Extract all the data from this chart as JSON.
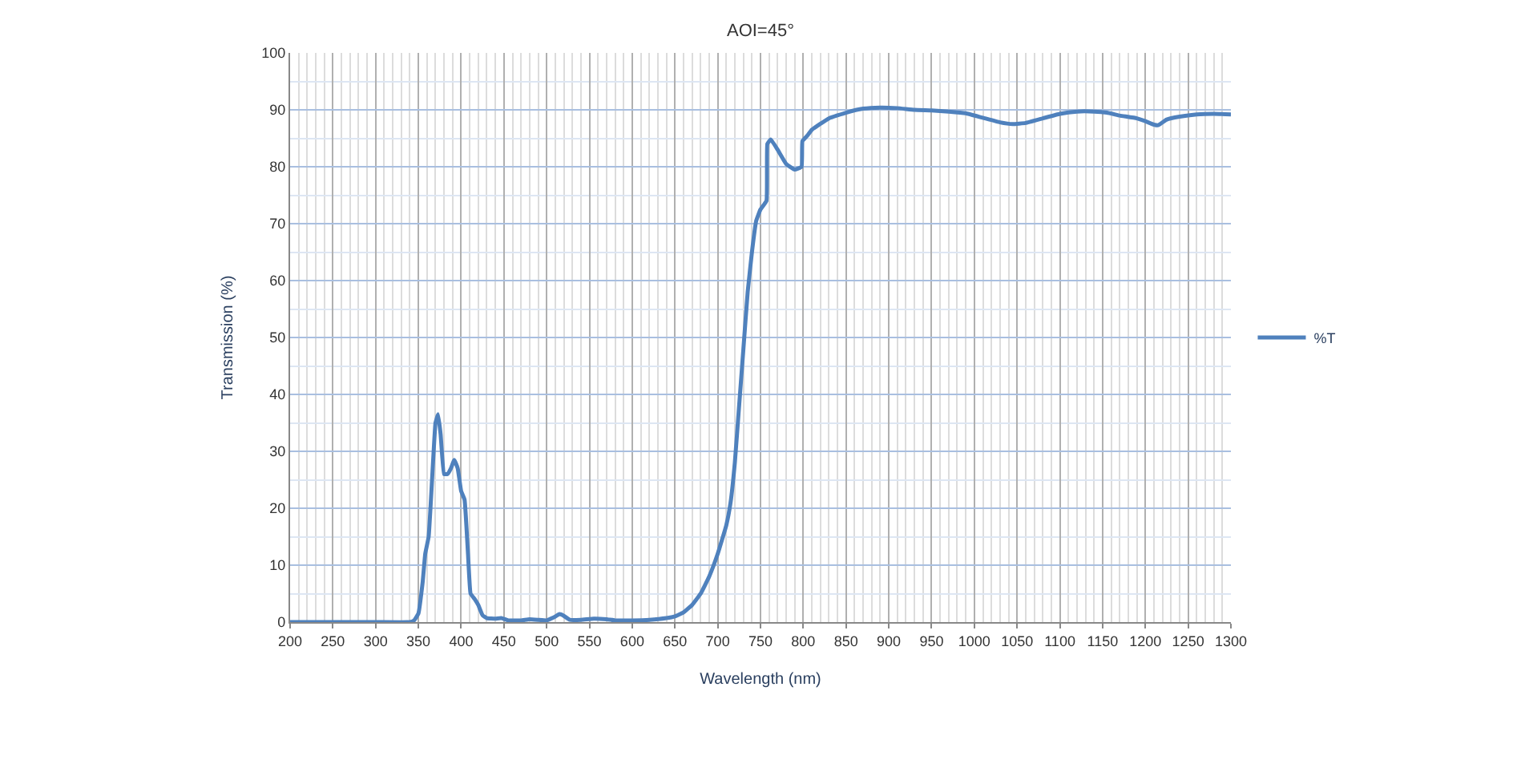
{
  "chart_data": {
    "type": "line",
    "title": "AOI=45°",
    "xlabel": "Wavelength (nm)",
    "ylabel": "Transmission (%)",
    "xlim": [
      200,
      1300
    ],
    "xticks": [
      200,
      250,
      300,
      350,
      400,
      450,
      500,
      550,
      600,
      650,
      700,
      750,
      800,
      850,
      900,
      950,
      1000,
      1050,
      1100,
      1150,
      1200,
      1250,
      1300
    ],
    "ylim": [
      0,
      100
    ],
    "yticks": [
      0,
      10,
      20,
      30,
      40,
      50,
      60,
      70,
      80,
      90,
      100
    ],
    "grid": true,
    "legend": "right",
    "x": [
      200,
      300,
      340,
      345,
      350,
      355,
      358,
      362,
      366,
      370,
      373,
      376,
      380,
      384,
      388,
      392,
      396,
      400,
      404,
      408,
      411,
      416,
      420,
      425,
      430,
      440,
      447,
      455,
      470,
      480,
      490,
      500,
      508,
      515,
      520,
      527,
      540,
      555,
      570,
      580,
      600,
      620,
      640,
      650,
      660,
      670,
      680,
      690,
      700,
      710,
      715,
      720,
      725,
      730,
      735,
      740,
      745,
      750,
      757,
      758,
      762,
      770,
      780,
      790,
      798,
      799,
      805,
      810,
      830,
      850,
      870,
      890,
      910,
      930,
      950,
      970,
      990,
      1010,
      1030,
      1045,
      1060,
      1080,
      1100,
      1120,
      1140,
      1155,
      1170,
      1190,
      1200,
      1210,
      1215,
      1225,
      1240,
      1260,
      1280,
      1300
    ],
    "series": [
      {
        "name": "%T",
        "color": "#4f81bd",
        "values": [
          0,
          0,
          0,
          0.3,
          1.5,
          7,
          12,
          15,
          25,
          35,
          36.5,
          33,
          26,
          26,
          27,
          28.5,
          27,
          23,
          21.5,
          12,
          5,
          4,
          3,
          1.2,
          0.7,
          0.6,
          0.7,
          0.3,
          0.3,
          0.5,
          0.4,
          0.3,
          0.8,
          1.4,
          1.1,
          0.4,
          0.4,
          0.6,
          0.5,
          0.3,
          0.3,
          0.4,
          0.7,
          1,
          1.7,
          3,
          5,
          8,
          12,
          17,
          21,
          28,
          38,
          48,
          58,
          65,
          70.5,
          72.5,
          74,
          84,
          84.8,
          83,
          80.5,
          79.5,
          80,
          84.5,
          85.5,
          86.5,
          88.5,
          89.5,
          90.2,
          90.4,
          90.3,
          90,
          89.9,
          89.7,
          89.4,
          88.6,
          87.8,
          87.5,
          87.7,
          88.5,
          89.3,
          89.7,
          89.7,
          89.5,
          89,
          88.5,
          88,
          87.4,
          87.3,
          88.3,
          88.8,
          89.2,
          89.3,
          89.2
        ]
      }
    ]
  }
}
